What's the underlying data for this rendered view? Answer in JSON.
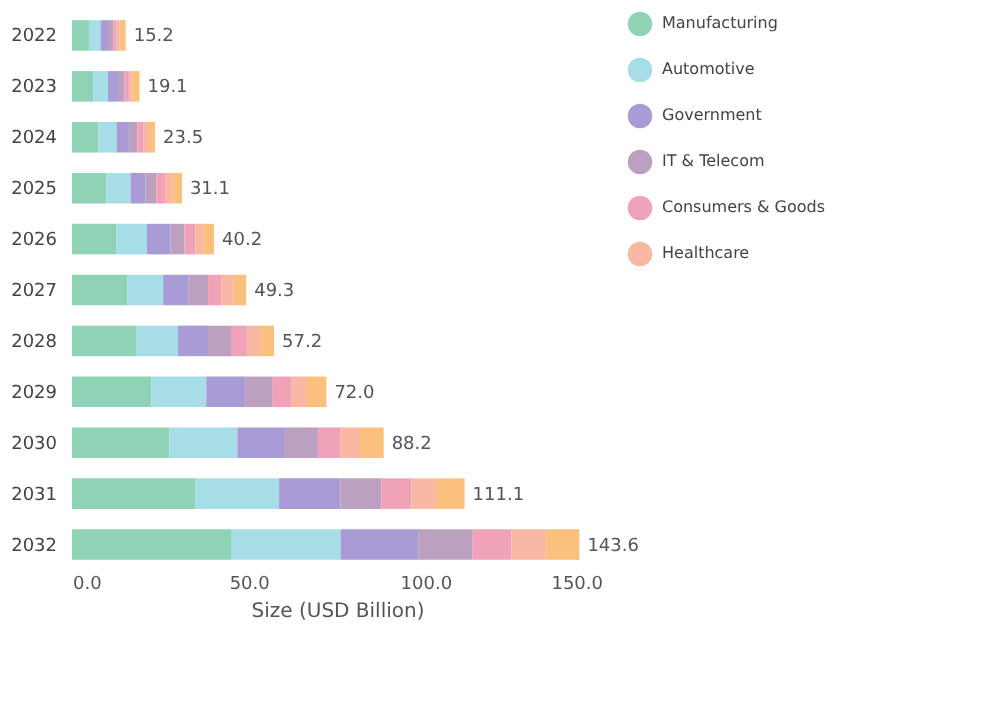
{
  "chart_data": {
    "type": "bar",
    "orientation": "horizontal",
    "stacked": true,
    "categories": [
      "2022",
      "2023",
      "2024",
      "2025",
      "2026",
      "2027",
      "2028",
      "2029",
      "2030",
      "2031",
      "2032"
    ],
    "series": [
      {
        "name": "Manufacturing",
        "color": "#8fd3b6",
        "values": [
          4.8,
          6,
          7.5,
          9.7,
          12.6,
          15.7,
          18.1,
          22.5,
          27.6,
          35,
          45
        ]
      },
      {
        "name": "Automotive",
        "color": "#a6dde6",
        "values": [
          3.3,
          4.2,
          5.1,
          6.9,
          8.6,
          10.1,
          11.9,
          15.5,
          19.2,
          23.6,
          31
        ]
      },
      {
        "name": "Government",
        "color": "#a99bd6",
        "values": [
          2.1,
          2.8,
          3.5,
          4.2,
          6.7,
          7.2,
          8.5,
          11,
          13.2,
          17.4,
          22
        ]
      },
      {
        "name": "IT & Telecom",
        "color": "#bba0c0",
        "values": [
          1.5,
          1.8,
          2.4,
          3.1,
          3.9,
          5.5,
          6.5,
          7.8,
          9.6,
          11.5,
          15.4
        ]
      },
      {
        "name": "Consumers & Goods",
        "color": "#f0a3b8",
        "values": [
          0.9,
          1.3,
          1.8,
          2.4,
          3.1,
          3.7,
          4.5,
          5.2,
          6.4,
          8.6,
          11
        ]
      },
      {
        "name": "Healthcare",
        "color": "#f9b8a4",
        "values": [
          0.9,
          1.1,
          1.5,
          2.2,
          2.4,
          3.6,
          3.7,
          4.5,
          5.5,
          6.9,
          9.8
        ]
      },
      {
        "color": "#fcc07e",
        "values": [
          1.7,
          1.9,
          1.7,
          2.6,
          2.9,
          3.5,
          4.0,
          5.5,
          6.7,
          8.1,
          9.4
        ]
      }
    ],
    "totals": [
      "15.2",
      "19.1",
      "23.5",
      "31.1",
      "40.2",
      "49.3",
      "57.2",
      "72.0",
      "88.2",
      "111.1",
      "143.6"
    ],
    "xlim": [
      0,
      150
    ],
    "xticks": [
      {
        "value": 0,
        "label": "0.0"
      },
      {
        "value": 50,
        "label": "50.0"
      },
      {
        "value": 100,
        "label": "100.0"
      },
      {
        "value": 150,
        "label": "150.0"
      }
    ],
    "xlabel": "Size (USD Billion)",
    "grid": false,
    "legend": "top right"
  }
}
